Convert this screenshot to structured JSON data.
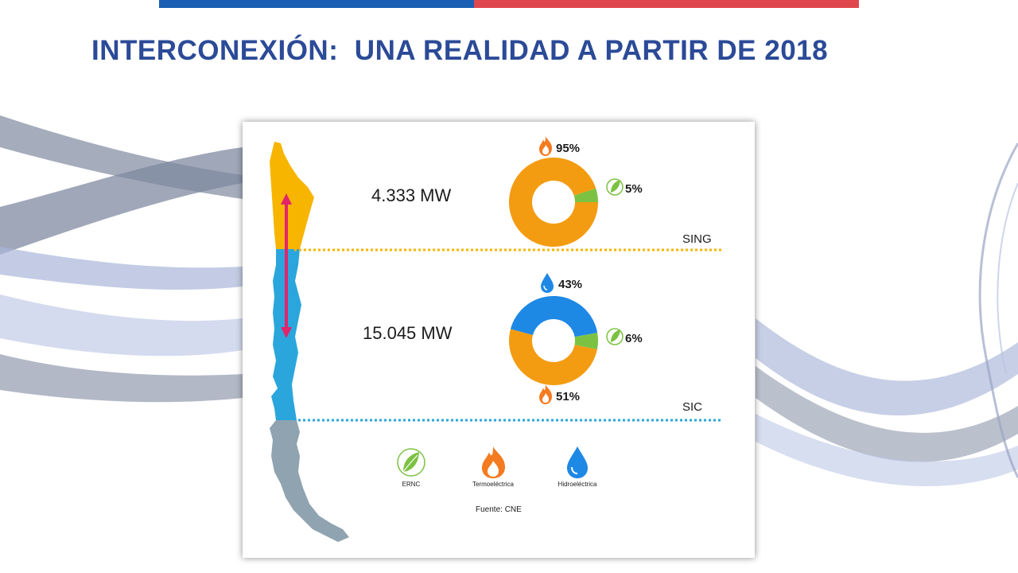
{
  "header": {
    "title": "INTERCONEXIÓN:  UNA REALIDAD A PARTIR DE 2018",
    "bar_colors": [
      "#1a5fb4",
      "#e0464e"
    ]
  },
  "chart_data": [
    {
      "type": "pie",
      "region": "SING",
      "capacity": "4.333 MW",
      "slices": [
        {
          "label": "Termoeléctrica",
          "value": 95,
          "text": "95%",
          "color": "#f39c12"
        },
        {
          "label": "ERNC",
          "value": 5,
          "text": "5%",
          "color": "#7cc242"
        }
      ]
    },
    {
      "type": "pie",
      "region": "SIC",
      "capacity": "15.045 MW",
      "slices": [
        {
          "label": "Termoeléctrica",
          "value": 51,
          "text": "51%",
          "color": "#f39c12"
        },
        {
          "label": "Hidroeléctrica",
          "value": 43,
          "text": "43%",
          "color": "#1e88e5"
        },
        {
          "label": "ERNC",
          "value": 6,
          "text": "6%",
          "color": "#7cc242"
        }
      ]
    }
  ],
  "legend": [
    {
      "label": "ERNC",
      "icon": "leaf-icon",
      "color": "#7cc242"
    },
    {
      "label": "Termoeléctrica",
      "icon": "flame-icon",
      "color": "#f47b20"
    },
    {
      "label": "Hidroeléctrica",
      "icon": "water-drop-icon",
      "color": "#1e88e5"
    }
  ],
  "source": "Fuente: CNE",
  "colors": {
    "sing_map": "#f7b500",
    "sic_map": "#2aa6dd",
    "south_map": "#8fa3b0",
    "arrow": "#e2246a"
  }
}
